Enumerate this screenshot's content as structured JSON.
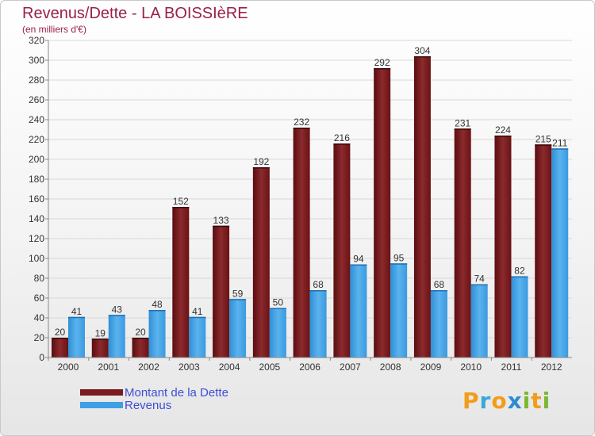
{
  "title": "Revenus/Dette - LA BOISSIèRE",
  "subtitle": "(en milliers d'€)",
  "colors": {
    "dette": "#7a1b1e",
    "revenus": "#3f9fe3",
    "title": "#9a1f4a",
    "legend_text": "#3b4fd8"
  },
  "legend": {
    "dette_label": "Montant de la Dette",
    "revenus_label": "Revenus"
  },
  "logo": {
    "text": "Proxiti",
    "letters": [
      {
        "ch": "P",
        "color": "#f39c1a"
      },
      {
        "ch": "r",
        "color": "#3aa7d9"
      },
      {
        "ch": "o",
        "color": "#f39c1a"
      },
      {
        "ch": "x",
        "color": "#2e8bd0"
      },
      {
        "ch": "i",
        "color": "#79b82f"
      },
      {
        "ch": "t",
        "color": "#f39c1a"
      },
      {
        "ch": "i",
        "color": "#79b82f"
      }
    ]
  },
  "chart_data": {
    "type": "bar",
    "title": "Revenus/Dette - LA BOISSIèRE",
    "ylabel": "(en milliers d'€)",
    "xlabel": "",
    "categories": [
      "2000",
      "2001",
      "2002",
      "2003",
      "2004",
      "2005",
      "2006",
      "2007",
      "2008",
      "2009",
      "2010",
      "2011",
      "2012"
    ],
    "series": [
      {
        "name": "Montant de la Dette",
        "key": "dette",
        "values": [
          20,
          19,
          20,
          152,
          133,
          192,
          232,
          216,
          292,
          304,
          231,
          224,
          215
        ]
      },
      {
        "name": "Revenus",
        "key": "revenus",
        "values": [
          41,
          43,
          48,
          41,
          59,
          50,
          68,
          94,
          95,
          68,
          74,
          82,
          211
        ]
      }
    ],
    "ylim": [
      0,
      320
    ],
    "yticks": [
      0,
      20,
      40,
      60,
      80,
      100,
      120,
      140,
      160,
      180,
      200,
      220,
      240,
      260,
      280,
      300,
      320
    ],
    "grid": true,
    "legend_position": "bottom-left"
  }
}
